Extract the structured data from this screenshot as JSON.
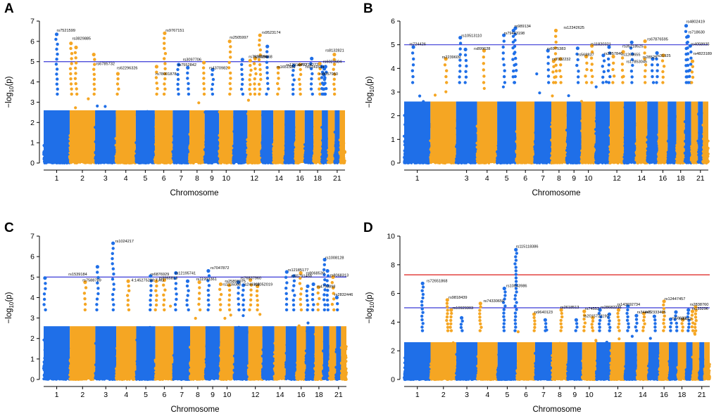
{
  "figure": {
    "xlabel": "Chromosome",
    "ylabel_main": "−log",
    "ylabel_sub": "10",
    "ylabel_var": "(p)"
  },
  "colors": {
    "odd_chr": "#1f6fe8",
    "even_chr": "#f5a623",
    "suggestive_line": "#3a3ad6",
    "genomewide_line": "#e0302e"
  },
  "chart_data": [
    {
      "panel": "A",
      "type": "scatter",
      "xlabel": "Chromosome",
      "ylabel": "-log10(p)",
      "ylim": [
        0,
        7
      ],
      "yticks": [
        0,
        1,
        2,
        3,
        4,
        5,
        6,
        7
      ],
      "chr_ticks": [
        "1",
        "2",
        "3",
        "4",
        "5",
        "6",
        "7",
        "8",
        "9",
        "10",
        "12",
        "14",
        "16",
        "18",
        "21"
      ],
      "suggestive_threshold": 5,
      "series": [
        {
          "name": "peaks",
          "x": [
            1.5,
            2.05,
            2.25,
            2.95,
            4.1,
            6.55,
            6.1,
            7.35,
            7.9,
            8.95,
            9.55,
            10.75,
            11.65,
            12.9,
            12.2,
            12.55,
            13.5,
            14.45,
            15.85,
            16.5,
            17.8,
            18.75,
            19.0,
            19.4,
            19.6,
            19.35,
            20.95
          ],
          "y": [
            6.35,
            5.9,
            5.7,
            5.35,
            4.4,
            6.4,
            4.75,
            4.85,
            4.7,
            4.95,
            4.6,
            6.0,
            5.1,
            6.3,
            5.05,
            5.15,
            5.75,
            4.7,
            4.8,
            4.85,
            5.15,
            4.9,
            4.75,
            4.65,
            4.75,
            4.35,
            5.35
          ]
        }
      ],
      "annotations": [
        {
          "text": "rs7521599",
          "x": 1.5,
          "y": 6.45
        },
        {
          "text": "rs3829885",
          "x": 2.1,
          "y": 6.05
        },
        {
          "text": "rs6785732",
          "x": 3.05,
          "y": 4.8
        },
        {
          "text": "rs62296326",
          "x": 4.05,
          "y": 4.6
        },
        {
          "text": "rs78001878",
          "x": 6.05,
          "y": 4.3
        },
        {
          "text": "rs9767151",
          "x": 6.6,
          "y": 6.45
        },
        {
          "text": "rs3097706",
          "x": 7.6,
          "y": 5.0
        },
        {
          "text": "rs7552842",
          "x": 7.3,
          "y": 4.75
        },
        {
          "text": "rs4370982",
          "x": 9.3,
          "y": 4.6
        },
        {
          "text": "rs2505997",
          "x": 10.75,
          "y": 6.1
        },
        {
          "text": "rs7936686",
          "x": 12.1,
          "y": 5.15
        },
        {
          "text": "rs1029468",
          "x": 12.45,
          "y": 5.15
        },
        {
          "text": "rs9523174",
          "x": 13.05,
          "y": 6.35
        },
        {
          "text": "rs1651580",
          "x": 14.3,
          "y": 4.65
        },
        {
          "text": "rs12910452",
          "x": 15.15,
          "y": 4.75
        },
        {
          "text": "rs77724272",
          "x": 16.25,
          "y": 4.75
        },
        {
          "text": "rs9141634",
          "x": 17.1,
          "y": 4.65
        },
        {
          "text": "rs8132821",
          "x": 19.6,
          "y": 5.45
        },
        {
          "text": "rs6021604",
          "x": 19.2,
          "y": 4.9
        },
        {
          "text": "rs8057950",
          "x": 18.7,
          "y": 4.3
        }
      ]
    },
    {
      "panel": "B",
      "type": "scatter",
      "xlabel": "Chromosome",
      "ylabel": "-log10(p)",
      "ylim": [
        0,
        6
      ],
      "yticks": [
        0,
        1,
        2,
        3,
        4,
        5,
        6
      ],
      "chr_ticks": [
        "1",
        "3",
        "4",
        "5",
        "6",
        "7",
        "8",
        "9",
        "10",
        "12",
        "14",
        "16",
        "18",
        "21"
      ],
      "suggestive_threshold": 5,
      "series": [
        {
          "name": "peaks",
          "x": [
            1.35,
            2.6,
            3.2,
            3.45,
            4.35,
            5.85,
            5.95,
            5.35,
            7.8,
            8.15,
            8.3,
            8.6,
            9.75,
            10.35,
            10.75,
            11.55,
            11.95,
            12.25,
            12.95,
            13.65,
            14.8,
            15.5,
            15.9,
            16.55,
            19.2,
            19.5,
            19.85,
            20.2
          ],
          "y": [
            4.9,
            4.4,
            5.3,
            4.8,
            4.75,
            5.6,
            5.7,
            5.4,
            4.75,
            4.3,
            5.6,
            4.4,
            4.85,
            4.5,
            4.95,
            4.55,
            4.9,
            4.5,
            4.7,
            5.1,
            5.15,
            4.4,
            4.65,
            4.55,
            5.8,
            5.35,
            4.95,
            4.3
          ]
        }
      ],
      "annotations": [
        {
          "text": "rs724426",
          "x": 1.2,
          "y": 4.95
        },
        {
          "text": "rs2239609",
          "x": 2.45,
          "y": 4.4
        },
        {
          "text": "rs10513110",
          "x": 3.25,
          "y": 5.3
        },
        {
          "text": "rs899628",
          "x": 3.85,
          "y": 4.75
        },
        {
          "text": "rs989134",
          "x": 5.9,
          "y": 5.7
        },
        {
          "text": "rs79443198",
          "x": 5.35,
          "y": 5.4
        },
        {
          "text": "rs6975383",
          "x": 7.75,
          "y": 4.75
        },
        {
          "text": "rs7002232",
          "x": 8.05,
          "y": 4.3
        },
        {
          "text": "rs12342625",
          "x": 8.8,
          "y": 5.65
        },
        {
          "text": "rs568837",
          "x": 9.75,
          "y": 4.5
        },
        {
          "text": "rs11820321",
          "x": 10.65,
          "y": 4.95
        },
        {
          "text": "rs2857846",
          "x": 11.6,
          "y": 4.55
        },
        {
          "text": "rs35218525",
          "x": 12.9,
          "y": 4.85
        },
        {
          "text": "rs1263655",
          "x": 12.85,
          "y": 4.5
        },
        {
          "text": "rs17853045",
          "x": 13.2,
          "y": 4.2
        },
        {
          "text": "rs67876595",
          "x": 15.0,
          "y": 5.15
        },
        {
          "text": "rs28525",
          "x": 14.6,
          "y": 4.4
        },
        {
          "text": "rs31925",
          "x": 15.85,
          "y": 4.45
        },
        {
          "text": "rs4802419",
          "x": 19.2,
          "y": 5.9
        },
        {
          "text": "rs718630",
          "x": 19.55,
          "y": 5.45
        },
        {
          "text": "rs4058935",
          "x": 19.95,
          "y": 4.95
        },
        {
          "text": "rs4823189",
          "x": 20.3,
          "y": 4.55
        }
      ]
    },
    {
      "panel": "C",
      "type": "scatter",
      "xlabel": "Chromosome",
      "ylabel": "-log10(p)",
      "ylim": [
        0,
        7
      ],
      "yticks": [
        0,
        1,
        2,
        3,
        4,
        5,
        6,
        7
      ],
      "chr_ticks": [
        "1",
        "2",
        "3",
        "4",
        "5",
        "6",
        "7",
        "8",
        "9",
        "10",
        "12",
        "14",
        "16",
        "18",
        "21"
      ],
      "suggestive_threshold": 5,
      "series": [
        {
          "name": "peaks",
          "x": [
            1.05,
            2.6,
            3.1,
            3.85,
            4.6,
            5.75,
            6.5,
            6.05,
            7.15,
            7.85,
            8.6,
            9.2,
            10.05,
            10.65,
            11.3,
            11.65,
            12.15,
            12.65,
            15.1,
            15.75,
            16.45,
            17.2,
            17.85,
            18.45,
            19.25,
            19.7,
            20.55,
            21.15
          ],
          "y": [
            4.95,
            4.75,
            5.5,
            6.65,
            4.8,
            5.05,
            4.85,
            4.8,
            5.2,
            4.8,
            4.75,
            5.3,
            4.65,
            4.6,
            4.75,
            4.6,
            4.85,
            4.55,
            5.25,
            5.05,
            5.2,
            4.55,
            4.65,
            4.5,
            5.85,
            5.3,
            5.0,
            4.0
          ]
        }
      ],
      "annotations": [
        {
          "text": "rs1539184",
          "x": 0.95,
          "y": 5.05
        },
        {
          "text": "rs7588789",
          "x": 2.5,
          "y": 4.75
        },
        {
          "text": "rs1024217",
          "x": 3.95,
          "y": 6.65
        },
        {
          "text": "4:145275288:T:AG",
          "x": 4.75,
          "y": 4.75
        },
        {
          "text": "rs6876929",
          "x": 5.75,
          "y": 5.05
        },
        {
          "text": "rs9965813",
          "x": 6.2,
          "y": 4.85
        },
        {
          "text": "rs12195741",
          "x": 7.1,
          "y": 5.1
        },
        {
          "text": "rs11993361",
          "x": 8.4,
          "y": 4.8
        },
        {
          "text": "rs7047872",
          "x": 9.35,
          "y": 5.35
        },
        {
          "text": "rs25896975",
          "x": 10.35,
          "y": 4.7
        },
        {
          "text": "rs76837960",
          "x": 11.45,
          "y": 4.85
        },
        {
          "text": "rs1116088",
          "x": 10.2,
          "y": 4.55
        },
        {
          "text": "rs249304",
          "x": 11.65,
          "y": 4.55
        },
        {
          "text": "rs2052019",
          "x": 12.4,
          "y": 4.55
        },
        {
          "text": "rs12185177",
          "x": 15.2,
          "y": 5.25
        },
        {
          "text": "rs55791468",
          "x": 15.5,
          "y": 4.95
        },
        {
          "text": "rs8068539",
          "x": 17.0,
          "y": 5.1
        },
        {
          "text": "rs1008128",
          "x": 19.35,
          "y": 5.85
        },
        {
          "text": "rs8068313",
          "x": 20.1,
          "y": 5.0
        },
        {
          "text": "rs4793898",
          "x": 18.25,
          "y": 4.45
        },
        {
          "text": "rs2832446",
          "x": 20.75,
          "y": 4.05
        }
      ]
    },
    {
      "panel": "D",
      "type": "scatter",
      "xlabel": "Chromosome",
      "ylabel": "-log10(p)",
      "ylim": [
        0,
        10
      ],
      "yticks": [
        0,
        2,
        4,
        6,
        8,
        10
      ],
      "chr_ticks": [
        "1",
        "2",
        "3",
        "4",
        "5",
        "6",
        "7",
        "8",
        "9",
        "10",
        "12",
        "14",
        "16",
        "18",
        "21"
      ],
      "suggestive_threshold": 5,
      "genomewide_threshold": 7.3,
      "series": [
        {
          "name": "peaks",
          "x": [
            0.7,
            2.65,
            2.8,
            3.25,
            4.15,
            5.35,
            5.95,
            6.95,
            7.6,
            8.6,
            9.6,
            10.15,
            10.75,
            11.25,
            11.9,
            12.55,
            13.25,
            13.95,
            14.6,
            15.55,
            16.5,
            17.2,
            17.8,
            18.6,
            19.35,
            20.0,
            20.45
          ],
          "y": [
            6.7,
            5.55,
            4.85,
            4.3,
            5.3,
            6.35,
            9.05,
            4.55,
            4.15,
            4.85,
            4.15,
            4.75,
            4.3,
            4.85,
            4.55,
            4.85,
            5.1,
            4.45,
            4.6,
            4.4,
            5.45,
            4.2,
            4.7,
            4.15,
            4.85,
            4.75,
            5.05
          ]
        }
      ],
      "annotations": [
        {
          "text": "rs72651868",
          "x": 0.85,
          "y": 6.75
        },
        {
          "text": "rs9818439",
          "x": 2.7,
          "y": 5.6
        },
        {
          "text": "rs10929303",
          "x": 2.85,
          "y": 4.85
        },
        {
          "text": "rs74330650",
          "x": 4.3,
          "y": 5.35
        },
        {
          "text": "rs10043986",
          "x": 5.45,
          "y": 6.4
        },
        {
          "text": "rs115118386",
          "x": 5.95,
          "y": 9.15
        },
        {
          "text": "rs9640123",
          "x": 6.95,
          "y": 4.55
        },
        {
          "text": "rs2618513",
          "x": 8.55,
          "y": 4.9
        },
        {
          "text": "rs74553",
          "x": 10.2,
          "y": 4.8
        },
        {
          "text": "rs2015722190",
          "x": 10.1,
          "y": 4.3
        },
        {
          "text": "rs28682236",
          "x": 11.3,
          "y": 4.9
        },
        {
          "text": "rs143692734",
          "x": 12.45,
          "y": 5.1
        },
        {
          "text": "rs34445",
          "x": 14.0,
          "y": 4.55
        },
        {
          "text": "rs72333405",
          "x": 14.7,
          "y": 4.55
        },
        {
          "text": "rs12447457",
          "x": 16.55,
          "y": 5.5
        },
        {
          "text": "rs58683",
          "x": 17.35,
          "y": 4.15
        },
        {
          "text": "rs8442",
          "x": 18.2,
          "y": 4.1
        },
        {
          "text": "rs2838760",
          "x": 19.6,
          "y": 5.1
        },
        {
          "text": "rs133296",
          "x": 19.9,
          "y": 4.8
        }
      ]
    }
  ]
}
